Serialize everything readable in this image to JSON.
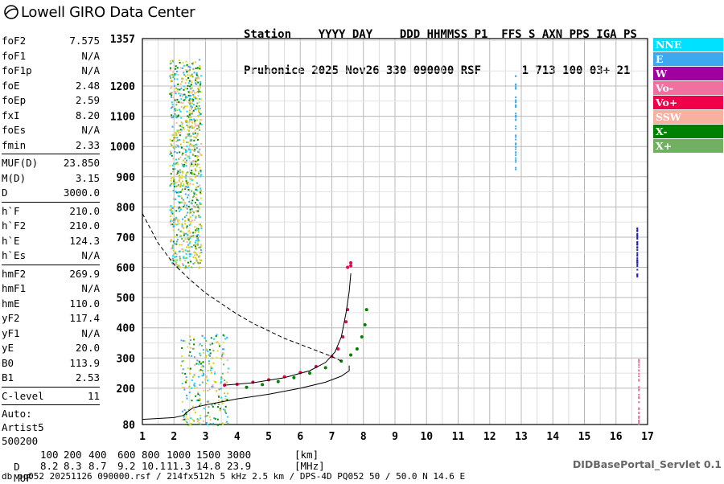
{
  "app": {
    "logo_text": "Lowell GIRO Data Center",
    "header_line1": "Station    YYYY DAY    DDD HHMMSS P1  FFS S AXN PPS IGA PS",
    "header_line2": "Pruhonice 2025 Nov26 330 090000 RSF      1 713 100 03+ 21",
    "servlet": "DIDBasePortal_Servlet 0.1",
    "footer": "db pq052 20251126 090000.rsf / 214fx512h 5 kHz 2.5 km / DPS-4D PQ052 50 / 50.0 N 14.6 E"
  },
  "params": {
    "group1": [
      {
        "k": "foF2",
        "v": "7.575"
      },
      {
        "k": "foF1",
        "v": "N/A"
      },
      {
        "k": "foF1p",
        "v": "N/A"
      },
      {
        "k": "foE",
        "v": "2.48"
      },
      {
        "k": "foEp",
        "v": "2.59"
      },
      {
        "k": "fxI",
        "v": "8.20"
      },
      {
        "k": "foEs",
        "v": "N/A"
      },
      {
        "k": "fmin",
        "v": "2.33"
      }
    ],
    "group2": [
      {
        "k": "MUF(D)",
        "v": "23.850"
      },
      {
        "k": "M(D)",
        "v": "3.15"
      },
      {
        "k": "D",
        "v": "3000.0"
      }
    ],
    "group3": [
      {
        "k": "h`F",
        "v": "210.0"
      },
      {
        "k": "h`F2",
        "v": "210.0"
      },
      {
        "k": "h`E",
        "v": "124.3"
      },
      {
        "k": "h`Es",
        "v": "N/A"
      }
    ],
    "group4": [
      {
        "k": "hmF2",
        "v": "269.9"
      },
      {
        "k": "hmF1",
        "v": "N/A"
      },
      {
        "k": "hmE",
        "v": "110.0"
      },
      {
        "k": "yF2",
        "v": "117.4"
      },
      {
        "k": "yF1",
        "v": "N/A"
      },
      {
        "k": "yE",
        "v": "20.0"
      },
      {
        "k": "B0",
        "v": "113.9"
      },
      {
        "k": "B1",
        "v": "2.53"
      }
    ],
    "group5": [
      {
        "k": "C-level",
        "v": "11"
      }
    ],
    "auto_lines": [
      "Auto:",
      "Artist5",
      "500200"
    ]
  },
  "legend": [
    {
      "label": "NNE",
      "color": "#00e0ff"
    },
    {
      "label": "E",
      "color": "#3ba8f0"
    },
    {
      "label": "W",
      "color": "#a000a0"
    },
    {
      "label": "Vo-",
      "color": "#f070a0"
    },
    {
      "label": "Vo+",
      "color": "#f0004a"
    },
    {
      "label": "SSW",
      "color": "#f8b0a0"
    },
    {
      "label": "X-",
      "color": "#008000"
    },
    {
      "label": "X+",
      "color": "#70b060"
    }
  ],
  "muf_table": {
    "d_label": "D",
    "d_values": [
      "100",
      "200",
      "400",
      "600",
      "800",
      "1000",
      "1500",
      "3000"
    ],
    "d_unit": "[km]",
    "muf_label": "MUF",
    "muf_values": [
      "8.2",
      "8.3",
      "8.7",
      "9.2",
      "10.1",
      "11.3",
      "14.8",
      "23.9"
    ],
    "muf_unit": "[MHz]"
  },
  "chart_data": {
    "type": "scatter",
    "xlim": [
      1,
      17
    ],
    "ylim": [
      80,
      1357
    ],
    "x_ticks": [
      "1",
      "2",
      "3",
      "4",
      "5",
      "6",
      "7",
      "8",
      "9",
      "10",
      "11",
      "12",
      "13",
      "14",
      "15",
      "16",
      "17"
    ],
    "y_ticks": [
      "80",
      "200",
      "300",
      "400",
      "500",
      "600",
      "700",
      "800",
      "900",
      "1000",
      "1100",
      "1200",
      "1357"
    ],
    "grid": true,
    "series": [
      {
        "name": "O trace",
        "color": "#f0004a",
        "points": [
          [
            3.6,
            210
          ],
          [
            4.0,
            213
          ],
          [
            4.5,
            220
          ],
          [
            5.0,
            228
          ],
          [
            5.5,
            238
          ],
          [
            6.0,
            252
          ],
          [
            6.5,
            272
          ],
          [
            7.0,
            305
          ],
          [
            7.2,
            330
          ],
          [
            7.35,
            370
          ],
          [
            7.45,
            420
          ],
          [
            7.5,
            460
          ]
        ]
      },
      {
        "name": "X trace",
        "color": "#008000",
        "points": [
          [
            4.3,
            203
          ],
          [
            4.8,
            212
          ],
          [
            5.3,
            222
          ],
          [
            5.8,
            235
          ],
          [
            6.3,
            250
          ],
          [
            6.8,
            268
          ],
          [
            7.3,
            290
          ],
          [
            7.6,
            310
          ],
          [
            7.8,
            330
          ],
          [
            7.95,
            370
          ],
          [
            8.05,
            410
          ],
          [
            8.1,
            460
          ]
        ]
      },
      {
        "name": "O trace vertical",
        "color": "#f0004a",
        "points": [
          [
            7.5,
            600
          ],
          [
            7.6,
            605
          ],
          [
            7.6,
            615
          ]
        ]
      }
    ],
    "curves": [
      {
        "name": "profile",
        "points": [
          [
            3.6,
            210
          ],
          [
            4.5,
            218
          ],
          [
            5.5,
            235
          ],
          [
            6.3,
            258
          ],
          [
            6.8,
            285
          ],
          [
            7.1,
            320
          ],
          [
            7.3,
            370
          ],
          [
            7.45,
            450
          ],
          [
            7.55,
            520
          ],
          [
            7.6,
            580
          ]
        ]
      },
      {
        "name": "profile lower",
        "points": [
          [
            1.0,
            97
          ],
          [
            2.0,
            103
          ],
          [
            2.3,
            110
          ],
          [
            2.4,
            120
          ],
          [
            2.6,
            135
          ],
          [
            3.0,
            145
          ],
          [
            4.0,
            165
          ],
          [
            5.0,
            180
          ],
          [
            6.0,
            200
          ],
          [
            6.8,
            220
          ],
          [
            7.3,
            240
          ],
          [
            7.55,
            258
          ],
          [
            7.55,
            275
          ]
        ]
      },
      {
        "name": "MUF dashed",
        "points": [
          [
            1.0,
            778
          ],
          [
            1.5,
            680
          ],
          [
            2.0,
            610
          ],
          [
            2.5,
            560
          ],
          [
            3.0,
            515
          ],
          [
            3.5,
            480
          ],
          [
            4.0,
            445
          ],
          [
            4.5,
            415
          ],
          [
            5.0,
            390
          ],
          [
            5.5,
            365
          ],
          [
            6.0,
            345
          ],
          [
            6.5,
            325
          ],
          [
            7.0,
            305
          ],
          [
            7.3,
            290
          ]
        ]
      }
    ]
  }
}
